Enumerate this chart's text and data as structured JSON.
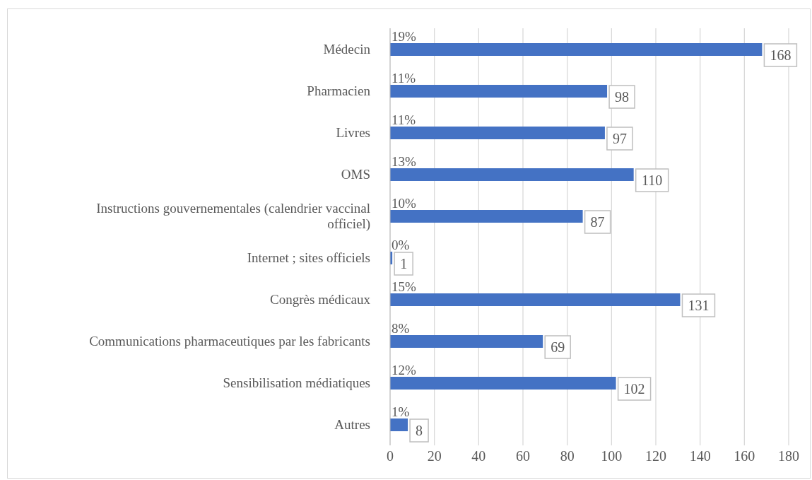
{
  "chart_data": {
    "type": "bar",
    "orientation": "horizontal",
    "categories": [
      "Médecin",
      "Pharmacien",
      "Livres",
      "OMS",
      "Instructions gouvernementales (calendrier vaccinal officiel)",
      "Internet ; sites officiels",
      "Congrès médicaux",
      "Communications pharmaceutiques par les fabricants",
      "Sensibilisation médiatiques",
      "Autres"
    ],
    "values": [
      168,
      98,
      97,
      110,
      87,
      1,
      131,
      69,
      102,
      8
    ],
    "color": "#4472c4",
    "xlim": [
      0,
      180
    ],
    "xticks": [
      0,
      20,
      40,
      60,
      80,
      100,
      120,
      140,
      160,
      180
    ],
    "grid": "x",
    "data_labels": true,
    "annotations": [
      "19%",
      "11%",
      "11%",
      "13%",
      "10%",
      "0%",
      "15%",
      "8%",
      "12%",
      "1%"
    ]
  }
}
